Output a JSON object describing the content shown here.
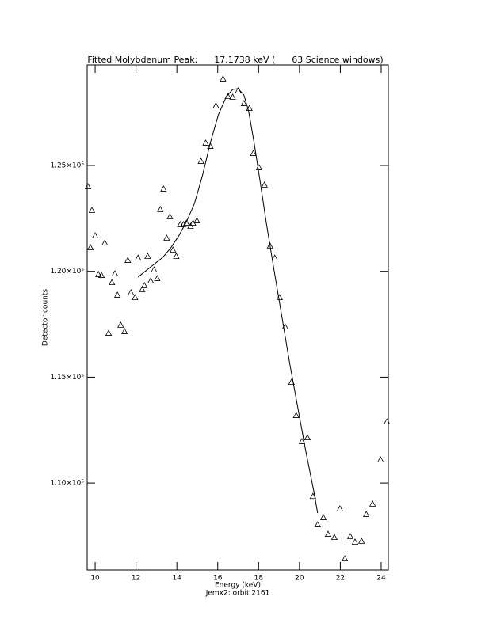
{
  "chart_data": {
    "type": "scatter",
    "title": "Fitted Molybdenum Peak:      17.1738 keV (      63 Science windows)",
    "xlabel": "Energy (keV)",
    "ylabel": "Detector counts",
    "subtitle": "Jemx2: orbit 2161",
    "xlim": [
      9.61,
      24.35
    ],
    "ylim": [
      105890,
      129750
    ],
    "xticks": [
      10,
      12,
      14,
      16,
      18,
      20,
      22,
      24
    ],
    "yticks": [
      {
        "value": 110000,
        "label": "1.10×10⁵"
      },
      {
        "value": 115000,
        "label": "1.15×10⁵"
      },
      {
        "value": 120000,
        "label": "1.20×10⁵"
      },
      {
        "value": 125000,
        "label": "1.25×10⁵"
      }
    ],
    "color": "#000000",
    "series": [
      {
        "style": "markers",
        "x": [
          9.65,
          9.77,
          9.84,
          10.0,
          10.16,
          10.31,
          10.47,
          10.66,
          10.82,
          10.97,
          11.09,
          11.25,
          11.44,
          11.6,
          11.75,
          11.95,
          12.1,
          12.3,
          12.41,
          12.57,
          12.72,
          12.88,
          13.04,
          13.19,
          13.35,
          13.5,
          13.66,
          13.81,
          13.97,
          14.16,
          14.32,
          14.47,
          14.67,
          14.79,
          14.98,
          15.18,
          15.41,
          15.64,
          15.91,
          16.26,
          16.5,
          16.73,
          17.0,
          17.28,
          17.55,
          17.74,
          18.02,
          18.29,
          18.56,
          18.79,
          19.03,
          19.3,
          19.61,
          19.84,
          20.12,
          20.39,
          20.66,
          20.89,
          21.17,
          21.4,
          21.71,
          21.98,
          22.22,
          22.49,
          22.72,
          23.04,
          23.27,
          23.58,
          23.97,
          24.28
        ],
        "values": [
          123990,
          121110,
          122870,
          121670,
          119840,
          119800,
          121330,
          117070,
          119460,
          119880,
          118870,
          117450,
          117150,
          120510,
          118980,
          118750,
          120620,
          119130,
          119320,
          120700,
          119540,
          120060,
          119650,
          122910,
          123880,
          121560,
          122570,
          121000,
          120700,
          122200,
          122200,
          122270,
          122120,
          122270,
          122380,
          125190,
          126050,
          125900,
          127810,
          129080,
          128250,
          128220,
          128520,
          127920,
          127690,
          125560,
          124890,
          124070,
          121190,
          120620,
          118750,
          117370,
          114750,
          113180,
          111950,
          112130,
          109360,
          108020,
          108360,
          107570,
          107420,
          108770,
          106410,
          107460,
          107200,
          107240,
          108510,
          109000,
          111090,
          112880
        ]
      },
      {
        "style": "line",
        "x": [
          12.1,
          12.72,
          13.31,
          13.7,
          14.09,
          14.47,
          14.86,
          15.25,
          15.64,
          16.03,
          16.42,
          16.73,
          17.0,
          17.28,
          17.51,
          17.78,
          18.05,
          18.37,
          18.75,
          19.14,
          19.53,
          19.92,
          20.31,
          20.7,
          20.89
        ],
        "values": [
          119730,
          120210,
          120660,
          121110,
          121670,
          122340,
          123200,
          124510,
          126080,
          127390,
          128250,
          128590,
          128630,
          128330,
          127580,
          126080,
          124400,
          122340,
          120100,
          117860,
          115610,
          113560,
          111500,
          109630,
          108580
        ]
      }
    ]
  }
}
